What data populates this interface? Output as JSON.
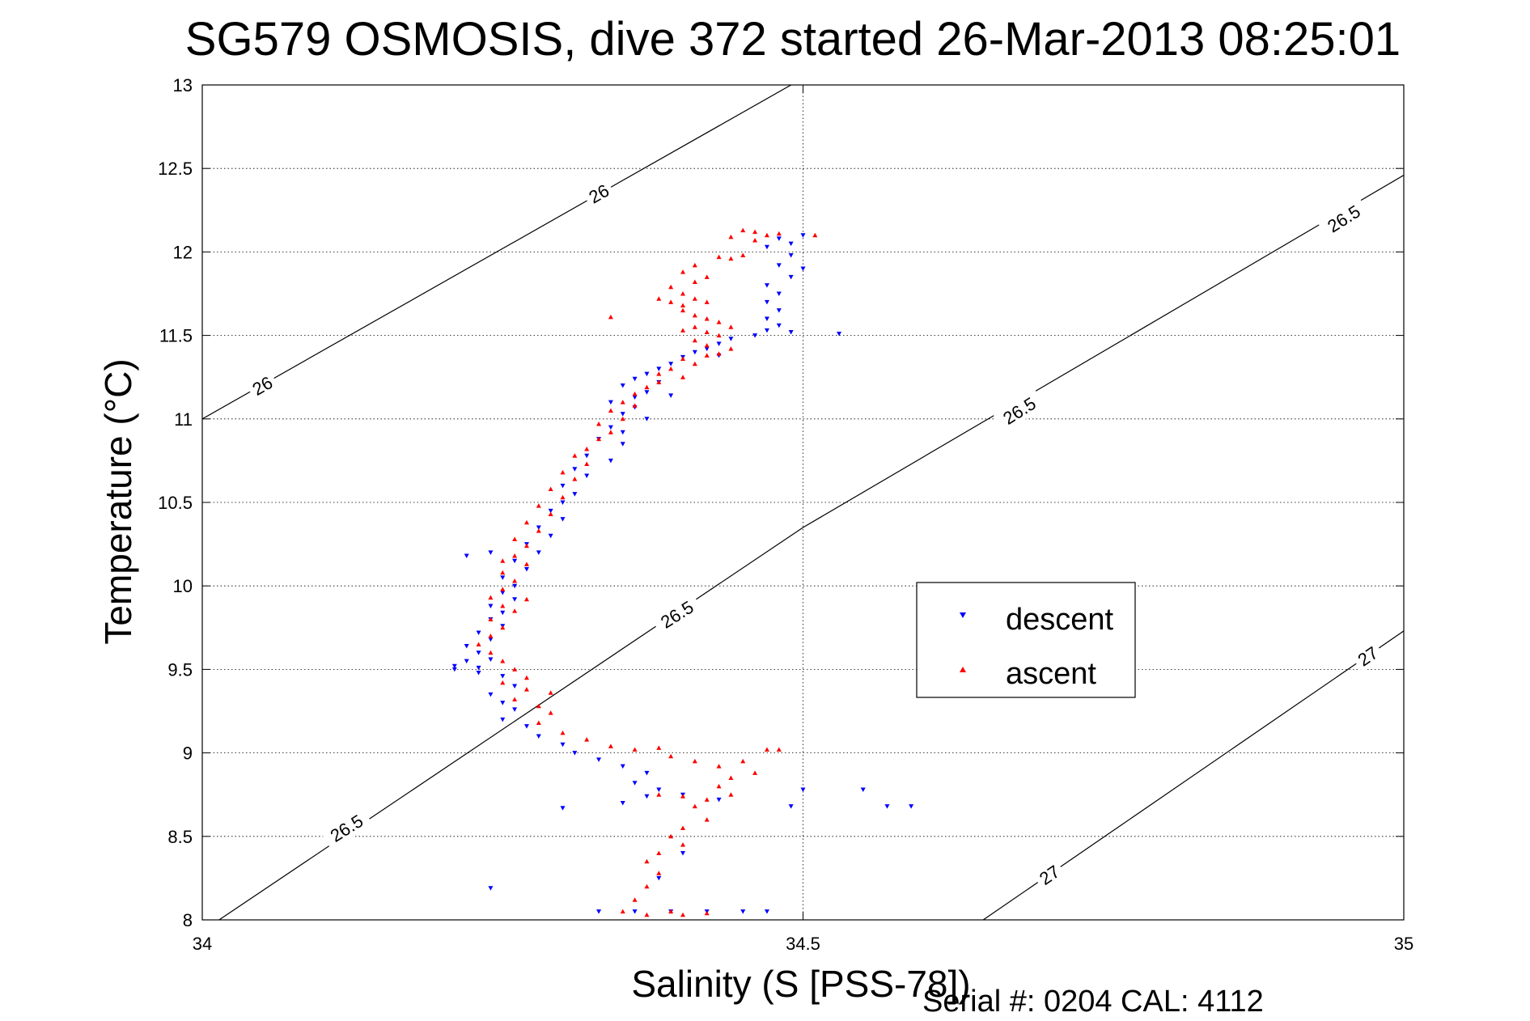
{
  "chart_data": {
    "type": "scatter",
    "title": "SG579 OSMOSIS, dive 372 started 26-Mar-2013 08:25:01",
    "xlabel": "Salinity (S [PSS-78])",
    "ylabel": "Temperature (°C)",
    "xlim": [
      34,
      35
    ],
    "ylim": [
      8,
      13
    ],
    "x_ticks": [
      {
        "value": 34,
        "label": "34"
      },
      {
        "value": 34.5,
        "label": "34.5"
      },
      {
        "value": 35,
        "label": "35"
      }
    ],
    "y_ticks": [
      {
        "value": 8,
        "label": "8"
      },
      {
        "value": 8.5,
        "label": "8.5"
      },
      {
        "value": 9,
        "label": "9"
      },
      {
        "value": 9.5,
        "label": "9.5"
      },
      {
        "value": 10,
        "label": "10"
      },
      {
        "value": 10.5,
        "label": "10.5"
      },
      {
        "value": 11,
        "label": "11"
      },
      {
        "value": 11.5,
        "label": "11.5"
      },
      {
        "value": 12,
        "label": "12"
      },
      {
        "value": 12.5,
        "label": "12.5"
      },
      {
        "value": 13,
        "label": "13"
      }
    ],
    "grid": true,
    "legend_position": "center-right",
    "density_contours": [
      {
        "level": "26",
        "points": [
          [
            34,
            11.0
          ],
          [
            34.49,
            13.0
          ]
        ],
        "labels": [
          {
            "text": "26",
            "x": 34.05,
            "y": 11.2
          },
          {
            "text": "26",
            "x": 34.33,
            "y": 12.35
          }
        ]
      },
      {
        "level": "26.5",
        "points": [
          [
            34.014,
            8.0
          ],
          [
            34.5,
            10.35
          ],
          [
            35,
            12.46
          ]
        ],
        "labels": [
          {
            "text": "26.5",
            "x": 34.12,
            "y": 8.55
          },
          {
            "text": "26.5",
            "x": 34.395,
            "y": 9.83
          },
          {
            "text": "26.5",
            "x": 34.68,
            "y": 11.05
          },
          {
            "text": "26.5",
            "x": 34.95,
            "y": 12.2
          }
        ]
      },
      {
        "level": "27",
        "points": [
          [
            34.65,
            8.0
          ],
          [
            35,
            9.73
          ]
        ],
        "labels": [
          {
            "text": "27",
            "x": 34.705,
            "y": 8.27
          },
          {
            "text": "27",
            "x": 34.97,
            "y": 9.58
          }
        ]
      }
    ],
    "series": [
      {
        "name": "descent",
        "color": "#0000ff",
        "marker": "triangle-down",
        "points": [
          [
            34.5,
            12.1
          ],
          [
            34.49,
            12.05
          ],
          [
            34.48,
            12.08
          ],
          [
            34.47,
            12.03
          ],
          [
            34.49,
            11.98
          ],
          [
            34.48,
            11.92
          ],
          [
            34.5,
            11.9
          ],
          [
            34.49,
            11.85
          ],
          [
            34.47,
            11.8
          ],
          [
            34.48,
            11.75
          ],
          [
            34.47,
            11.7
          ],
          [
            34.48,
            11.65
          ],
          [
            34.47,
            11.6
          ],
          [
            34.48,
            11.56
          ],
          [
            34.49,
            11.52
          ],
          [
            34.47,
            11.53
          ],
          [
            34.46,
            11.5
          ],
          [
            34.44,
            11.48
          ],
          [
            34.43,
            11.45
          ],
          [
            34.42,
            11.42
          ],
          [
            34.41,
            11.4
          ],
          [
            34.43,
            11.38
          ],
          [
            34.4,
            11.37
          ],
          [
            34.39,
            11.33
          ],
          [
            34.38,
            11.3
          ],
          [
            34.37,
            11.27
          ],
          [
            34.36,
            11.24
          ],
          [
            34.38,
            11.22
          ],
          [
            34.35,
            11.2
          ],
          [
            34.37,
            11.16
          ],
          [
            34.36,
            11.13
          ],
          [
            34.39,
            11.14
          ],
          [
            34.34,
            11.1
          ],
          [
            34.36,
            11.07
          ],
          [
            34.35,
            11.03
          ],
          [
            34.37,
            11.0
          ],
          [
            34.34,
            10.95
          ],
          [
            34.35,
            10.92
          ],
          [
            34.33,
            10.88
          ],
          [
            34.35,
            10.85
          ],
          [
            34.32,
            10.78
          ],
          [
            34.34,
            10.75
          ],
          [
            34.31,
            10.7
          ],
          [
            34.32,
            10.66
          ],
          [
            34.3,
            10.6
          ],
          [
            34.31,
            10.55
          ],
          [
            34.3,
            10.5
          ],
          [
            34.29,
            10.45
          ],
          [
            34.3,
            10.4
          ],
          [
            34.28,
            10.35
          ],
          [
            34.29,
            10.3
          ],
          [
            34.27,
            10.25
          ],
          [
            34.28,
            10.2
          ],
          [
            34.26,
            10.15
          ],
          [
            34.27,
            10.1
          ],
          [
            34.25,
            10.05
          ],
          [
            34.26,
            10.0
          ],
          [
            34.25,
            9.96
          ],
          [
            34.26,
            9.92
          ],
          [
            34.24,
            9.88
          ],
          [
            34.25,
            9.84
          ],
          [
            34.24,
            9.8
          ],
          [
            34.25,
            9.76
          ],
          [
            34.23,
            9.72
          ],
          [
            34.24,
            9.68
          ],
          [
            34.22,
            9.64
          ],
          [
            34.23,
            9.6
          ],
          [
            34.24,
            9.56
          ],
          [
            34.22,
            9.55
          ],
          [
            34.21,
            9.52
          ],
          [
            34.23,
            9.48
          ],
          [
            34.25,
            9.46
          ],
          [
            34.26,
            9.4
          ],
          [
            34.24,
            9.35
          ],
          [
            34.25,
            9.3
          ],
          [
            34.26,
            9.26
          ],
          [
            34.25,
            9.2
          ],
          [
            34.27,
            9.16
          ],
          [
            34.28,
            9.1
          ],
          [
            34.3,
            9.05
          ],
          [
            34.31,
            9.0
          ],
          [
            34.33,
            8.96
          ],
          [
            34.35,
            8.92
          ],
          [
            34.37,
            8.88
          ],
          [
            34.36,
            8.82
          ],
          [
            34.38,
            8.78
          ],
          [
            34.4,
            8.75
          ],
          [
            34.37,
            8.74
          ],
          [
            34.35,
            8.7
          ],
          [
            34.3,
            8.67
          ],
          [
            34.49,
            8.68
          ],
          [
            34.5,
            8.78
          ],
          [
            34.55,
            8.78
          ],
          [
            34.57,
            8.68
          ],
          [
            34.59,
            8.68
          ],
          [
            34.43,
            8.72
          ],
          [
            34.4,
            8.4
          ],
          [
            34.38,
            8.25
          ],
          [
            34.39,
            8.05
          ],
          [
            34.42,
            8.05
          ],
          [
            34.45,
            8.05
          ],
          [
            34.47,
            8.05
          ],
          [
            34.33,
            8.05
          ],
          [
            34.36,
            8.05
          ],
          [
            34.24,
            8.19
          ],
          [
            34.21,
            9.5
          ],
          [
            34.53,
            11.51
          ],
          [
            34.24,
            10.2
          ],
          [
            34.22,
            10.18
          ],
          [
            34.23,
            9.51
          ]
        ]
      },
      {
        "name": "ascent",
        "color": "#ff0000",
        "marker": "triangle-up",
        "points": [
          [
            34.51,
            12.1
          ],
          [
            34.48,
            12.11
          ],
          [
            34.46,
            12.12
          ],
          [
            34.45,
            12.13
          ],
          [
            34.47,
            12.1
          ],
          [
            34.44,
            12.09
          ],
          [
            34.46,
            12.07
          ],
          [
            34.45,
            11.98
          ],
          [
            34.44,
            11.96
          ],
          [
            34.43,
            11.97
          ],
          [
            34.41,
            11.92
          ],
          [
            34.4,
            11.88
          ],
          [
            34.42,
            11.85
          ],
          [
            34.41,
            11.82
          ],
          [
            34.39,
            11.79
          ],
          [
            34.4,
            11.75
          ],
          [
            34.41,
            11.72
          ],
          [
            34.42,
            11.7
          ],
          [
            34.4,
            11.68
          ],
          [
            34.39,
            11.7
          ],
          [
            34.38,
            11.72
          ],
          [
            34.4,
            11.65
          ],
          [
            34.41,
            11.62
          ],
          [
            34.42,
            11.6
          ],
          [
            34.43,
            11.58
          ],
          [
            34.41,
            11.55
          ],
          [
            34.4,
            11.53
          ],
          [
            34.42,
            11.52
          ],
          [
            34.44,
            11.55
          ],
          [
            34.43,
            11.5
          ],
          [
            34.41,
            11.47
          ],
          [
            34.42,
            11.44
          ],
          [
            34.44,
            11.42
          ],
          [
            34.43,
            11.39
          ],
          [
            34.42,
            11.38
          ],
          [
            34.4,
            11.36
          ],
          [
            34.41,
            11.33
          ],
          [
            34.39,
            11.3
          ],
          [
            34.38,
            11.27
          ],
          [
            34.4,
            11.25
          ],
          [
            34.38,
            11.22
          ],
          [
            34.37,
            11.19
          ],
          [
            34.36,
            11.15
          ],
          [
            34.35,
            11.1
          ],
          [
            34.36,
            11.08
          ],
          [
            34.34,
            11.05
          ],
          [
            34.35,
            11.0
          ],
          [
            34.33,
            10.97
          ],
          [
            34.34,
            10.92
          ],
          [
            34.33,
            10.88
          ],
          [
            34.32,
            10.82
          ],
          [
            34.31,
            10.78
          ],
          [
            34.32,
            10.73
          ],
          [
            34.3,
            10.68
          ],
          [
            34.31,
            10.64
          ],
          [
            34.29,
            10.58
          ],
          [
            34.3,
            10.53
          ],
          [
            34.28,
            10.48
          ],
          [
            34.29,
            10.43
          ],
          [
            34.27,
            10.38
          ],
          [
            34.28,
            10.33
          ],
          [
            34.26,
            10.28
          ],
          [
            34.27,
            10.24
          ],
          [
            34.26,
            10.18
          ],
          [
            34.27,
            10.13
          ],
          [
            34.25,
            10.08
          ],
          [
            34.26,
            10.03
          ],
          [
            34.25,
            9.98
          ],
          [
            34.24,
            9.93
          ],
          [
            34.25,
            9.88
          ],
          [
            34.26,
            9.85
          ],
          [
            34.24,
            9.8
          ],
          [
            34.25,
            9.75
          ],
          [
            34.24,
            9.7
          ],
          [
            34.23,
            9.65
          ],
          [
            34.24,
            9.6
          ],
          [
            34.25,
            9.55
          ],
          [
            34.26,
            9.5
          ],
          [
            34.27,
            9.45
          ],
          [
            34.25,
            9.42
          ],
          [
            34.27,
            9.38
          ],
          [
            34.29,
            9.36
          ],
          [
            34.26,
            9.32
          ],
          [
            34.28,
            9.28
          ],
          [
            34.29,
            9.24
          ],
          [
            34.28,
            9.18
          ],
          [
            34.3,
            9.12
          ],
          [
            34.32,
            9.08
          ],
          [
            34.34,
            9.04
          ],
          [
            34.36,
            9.02
          ],
          [
            34.38,
            9.03
          ],
          [
            34.39,
            8.98
          ],
          [
            34.41,
            8.95
          ],
          [
            34.43,
            8.92
          ],
          [
            34.45,
            8.95
          ],
          [
            34.47,
            9.02
          ],
          [
            34.48,
            9.02
          ],
          [
            34.44,
            8.85
          ],
          [
            34.46,
            8.88
          ],
          [
            34.43,
            8.8
          ],
          [
            34.44,
            8.75
          ],
          [
            34.42,
            8.72
          ],
          [
            34.4,
            8.74
          ],
          [
            34.38,
            8.75
          ],
          [
            34.41,
            8.68
          ],
          [
            34.42,
            8.6
          ],
          [
            34.4,
            8.55
          ],
          [
            34.39,
            8.5
          ],
          [
            34.4,
            8.45
          ],
          [
            34.38,
            8.4
          ],
          [
            34.37,
            8.35
          ],
          [
            34.38,
            8.28
          ],
          [
            34.37,
            8.2
          ],
          [
            34.36,
            8.12
          ],
          [
            34.35,
            8.05
          ],
          [
            34.39,
            8.05
          ],
          [
            34.4,
            8.03
          ],
          [
            34.42,
            8.04
          ],
          [
            34.37,
            8.03
          ],
          [
            34.34,
            11.61
          ],
          [
            34.25,
            10.15
          ],
          [
            34.27,
            9.92
          ]
        ]
      }
    ]
  },
  "legend": {
    "descent_label": "descent",
    "ascent_label": "ascent"
  },
  "footer": {
    "text": "Serial #: 0204  CAL: 4112"
  }
}
